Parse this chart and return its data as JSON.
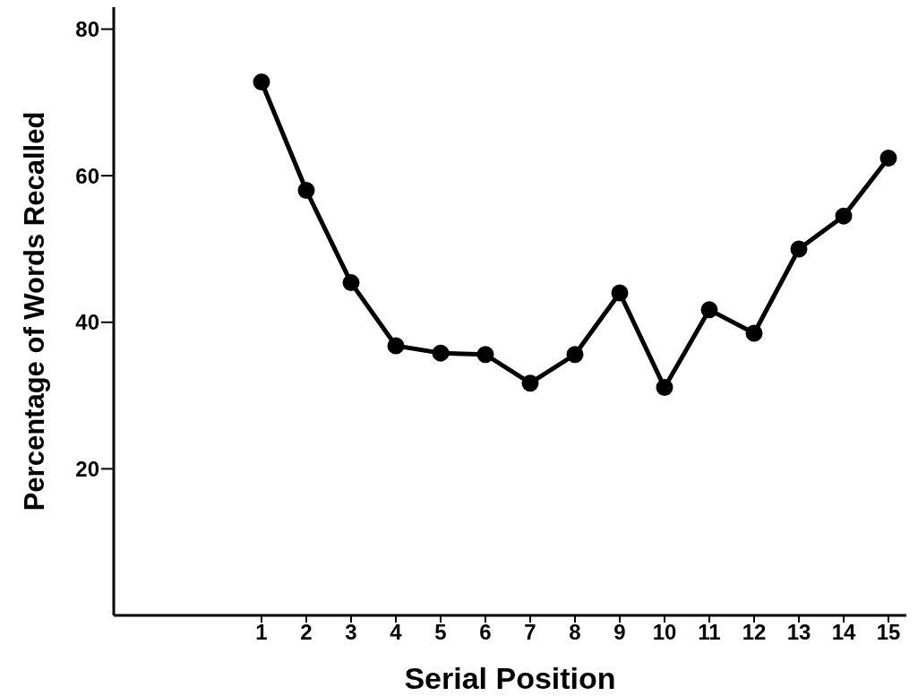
{
  "chart_data": {
    "type": "line",
    "xlabel": "Serial Position",
    "ylabel": "Percentage of Words Recalled",
    "x": [
      1,
      2,
      3,
      4,
      5,
      6,
      7,
      8,
      9,
      10,
      11,
      12,
      13,
      14,
      15
    ],
    "series": [
      {
        "color": "#000000",
        "values": [
          72.8,
          58.0,
          45.4,
          36.8,
          35.8,
          35.6,
          31.7,
          35.6,
          44.0,
          31.1,
          41.7,
          38.5,
          50.0,
          54.5,
          62.4
        ]
      }
    ],
    "xlim": [
      -2.3,
      15.4
    ],
    "xticks": [
      1,
      2,
      3,
      4,
      5,
      6,
      7,
      8,
      9,
      10,
      11,
      12,
      13,
      14,
      15
    ],
    "ylim": [
      0,
      83
    ],
    "yticks": [
      20,
      40,
      60,
      80
    ],
    "grid": false,
    "legend": false,
    "marker": "circle",
    "line_style": "solid"
  }
}
